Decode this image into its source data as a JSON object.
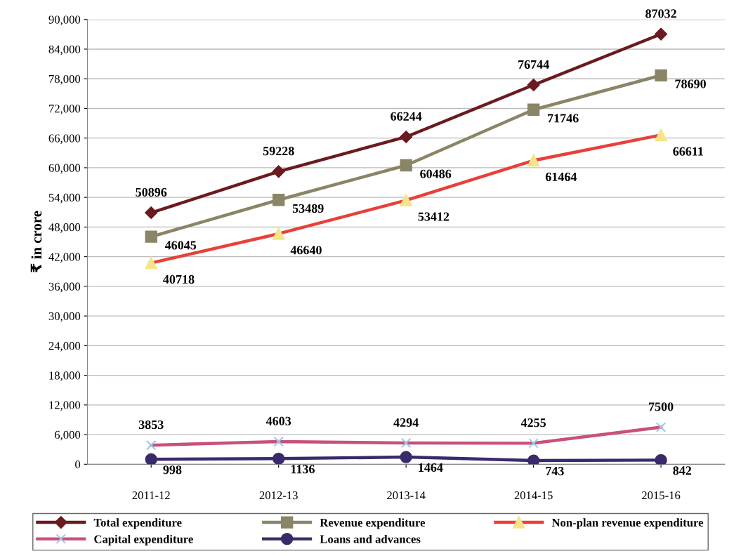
{
  "chart_data": {
    "type": "line",
    "ylabel": "₹ in crore",
    "categories": [
      "2011-12",
      "2012-13",
      "2013-14",
      "2014-15",
      "2015-16"
    ],
    "series": [
      {
        "name": "Total expenditure",
        "color": "#6b1a1f",
        "marker": "diamond",
        "values": [
          50896,
          59228,
          66244,
          76744,
          87032
        ]
      },
      {
        "name": "Revenue expenditure",
        "color": "#8a8566",
        "marker": "square",
        "values": [
          46045,
          53489,
          60486,
          71746,
          78690
        ]
      },
      {
        "name": "Non-plan revenue expenditure",
        "color": "#e8403a",
        "marker": "triangle",
        "values": [
          40718,
          46640,
          53412,
          61464,
          66611
        ]
      },
      {
        "name": "Capital expenditure",
        "color": "#c94f7c",
        "marker": "cross",
        "values": [
          3853,
          4603,
          4294,
          4255,
          7500
        ]
      },
      {
        "name": "Loans and advances",
        "color": "#3b2a6b",
        "marker": "circle",
        "values": [
          998,
          1136,
          1464,
          743,
          842
        ]
      }
    ],
    "ylim": [
      0,
      90000
    ],
    "yticks": [
      0,
      {
        "value": 6000,
        "label": "6,000"
      },
      {
        "value": 12000,
        "label": "12,000"
      },
      {
        "value": 18000,
        "label": "18,000"
      },
      {
        "value": 24000,
        "label": "24,000"
      },
      {
        "value": 30000,
        "label": "30,000"
      },
      {
        "value": 36000,
        "label": "36,000"
      },
      {
        "value": 42000,
        "label": "42,000"
      },
      {
        "value": 48000,
        "label": "48,000"
      },
      {
        "value": 54000,
        "label": "54,000"
      },
      {
        "value": 60000,
        "label": "60,000"
      },
      {
        "value": 66000,
        "label": "66,000"
      },
      {
        "value": 72000,
        "label": "72,000"
      },
      {
        "value": 78000,
        "label": "78,000"
      },
      {
        "value": 84000,
        "label": "84,000"
      },
      {
        "value": 90000,
        "label": "90,000"
      }
    ],
    "grid": "y",
    "legend": "bottom",
    "data_labels": true
  }
}
